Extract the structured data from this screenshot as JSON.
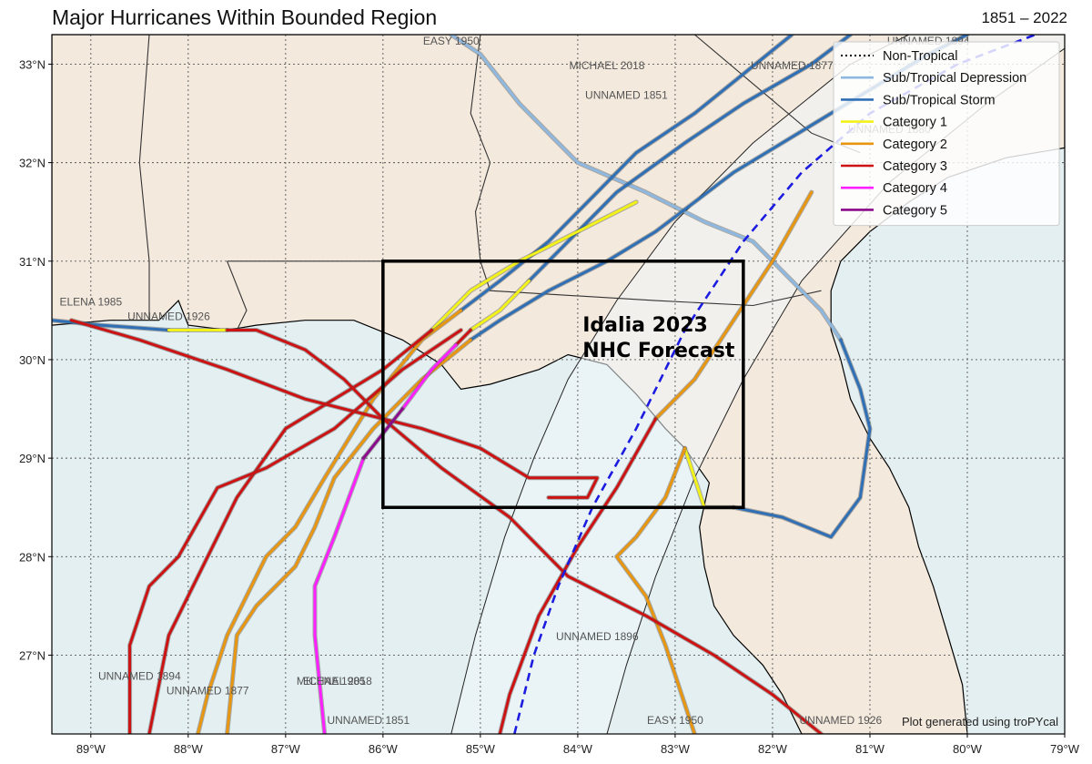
{
  "title": "Major Hurricanes Within Bounded Region",
  "years": "1851 – 2022",
  "credit": "Plot generated using troPYcal",
  "colors": {
    "ocean": "#e4eff1",
    "land": "#f3e9dd",
    "cone": "#eff5f8",
    "forecast": "#1c1ce0",
    "box": "#000000"
  },
  "chart_data": {
    "type": "map",
    "xlim": [
      -89.4,
      -79.0
    ],
    "ylim": [
      26.2,
      33.3
    ],
    "lon_ticks": [
      {
        "v": -89,
        "label": "89°W"
      },
      {
        "v": -88,
        "label": "88°W"
      },
      {
        "v": -87,
        "label": "87°W"
      },
      {
        "v": -86,
        "label": "86°W"
      },
      {
        "v": -85,
        "label": "85°W"
      },
      {
        "v": -84,
        "label": "84°W"
      },
      {
        "v": -83,
        "label": "83°W"
      },
      {
        "v": -82,
        "label": "82°W"
      },
      {
        "v": -81,
        "label": "81°W"
      },
      {
        "v": -80,
        "label": "80°W"
      },
      {
        "v": -79,
        "label": "79°W"
      }
    ],
    "lat_ticks": [
      {
        "v": 27,
        "label": "27°N"
      },
      {
        "v": 28,
        "label": "28°N"
      },
      {
        "v": 29,
        "label": "29°N"
      },
      {
        "v": 30,
        "label": "30°N"
      },
      {
        "v": 31,
        "label": "31°N"
      },
      {
        "v": 32,
        "label": "32°N"
      },
      {
        "v": 33,
        "label": "33°N"
      }
    ],
    "grid": true,
    "legend_position": "top-right",
    "legend": [
      {
        "label": "Non-Tropical",
        "color": "#000000",
        "style": "dotted"
      },
      {
        "label": "Sub/Tropical Depression",
        "color": "#8fb8e0",
        "style": "solid"
      },
      {
        "label": "Sub/Tropical Storm",
        "color": "#2f6fb5",
        "style": "solid"
      },
      {
        "label": "Category 1",
        "color": "#f2f21a",
        "style": "solid"
      },
      {
        "label": "Category 2",
        "color": "#e8960f",
        "style": "solid"
      },
      {
        "label": "Category 3",
        "color": "#cc1212",
        "style": "solid"
      },
      {
        "label": "Category 4",
        "color": "#ff1fff",
        "style": "solid"
      },
      {
        "label": "Category 5",
        "color": "#8b0a8b",
        "style": "solid"
      }
    ],
    "bounded_region": {
      "lon": [
        -86.0,
        -82.3
      ],
      "lat": [
        28.5,
        31.0
      ]
    },
    "annotation": {
      "line1": "Idalia 2023",
      "line2": "NHC Forecast",
      "lon": -83.95,
      "lat": 30.1
    },
    "forecast_track": [
      [
        -84.65,
        26.2
      ],
      [
        -84.45,
        27.0
      ],
      [
        -84.2,
        27.7
      ],
      [
        -83.85,
        28.5
      ],
      [
        -83.4,
        29.3
      ],
      [
        -82.9,
        30.3
      ],
      [
        -82.3,
        31.2
      ],
      [
        -81.7,
        31.9
      ],
      [
        -81.0,
        32.5
      ],
      [
        -80.1,
        33.0
      ],
      [
        -79.3,
        33.3
      ]
    ],
    "storms": [
      {
        "label": "EASY 1950",
        "label_pos": [
          -85.3,
          33.2
        ],
        "segments": [
          {
            "cat": "SD",
            "pts": [
              [
                -85.3,
                33.3
              ],
              [
                -85.0,
                33.1
              ],
              [
                -84.6,
                32.6
              ],
              [
                -84.3,
                32.3
              ],
              [
                -84.0,
                32.0
              ],
              [
                -83.3,
                31.7
              ],
              [
                -82.7,
                31.4
              ],
              [
                -82.2,
                31.2
              ],
              [
                -81.8,
                30.8
              ],
              [
                -81.5,
                30.5
              ],
              [
                -81.3,
                30.2
              ]
            ]
          },
          {
            "cat": "TS",
            "pts": [
              [
                -81.3,
                30.2
              ],
              [
                -81.1,
                29.7
              ],
              [
                -81.0,
                29.3
              ],
              [
                -81.1,
                28.6
              ],
              [
                -81.4,
                28.2
              ],
              [
                -81.9,
                28.4
              ],
              [
                -82.4,
                28.5
              ]
            ]
          },
          {
            "cat": "C1",
            "pts": [
              [
                -82.4,
                28.5
              ],
              [
                -82.7,
                28.5
              ],
              [
                -82.8,
                28.8
              ],
              [
                -82.9,
                29.1
              ]
            ]
          },
          {
            "cat": "C2",
            "pts": [
              [
                -82.9,
                29.1
              ],
              [
                -83.1,
                28.6
              ],
              [
                -83.4,
                28.2
              ],
              [
                -83.6,
                28.0
              ],
              [
                -83.3,
                27.6
              ],
              [
                -83.1,
                27.1
              ],
              [
                -82.8,
                26.2
              ]
            ]
          }
        ]
      },
      {
        "label": "EASY 1950",
        "label_pos": [
          -83.0,
          26.3
        ],
        "segments": []
      },
      {
        "label": "MICHAEL 2018",
        "label_pos": [
          -83.7,
          32.95
        ],
        "segments": [
          {
            "cat": "TS",
            "pts": [
              [
                -81.2,
                33.3
              ],
              [
                -81.6,
                33.0
              ],
              [
                -82.3,
                32.6
              ],
              [
                -82.9,
                32.2
              ],
              [
                -83.6,
                31.7
              ],
              [
                -84.1,
                31.2
              ],
              [
                -84.5,
                30.8
              ]
            ]
          },
          {
            "cat": "C1",
            "pts": [
              [
                -84.5,
                30.8
              ],
              [
                -84.8,
                30.5
              ],
              [
                -85.1,
                30.3
              ]
            ]
          },
          {
            "cat": "C3",
            "pts": [
              [
                -85.1,
                30.3
              ],
              [
                -85.25,
                30.15
              ]
            ]
          },
          {
            "cat": "C4",
            "pts": [
              [
                -85.25,
                30.15
              ],
              [
                -85.5,
                29.9
              ],
              [
                -85.8,
                29.5
              ]
            ]
          },
          {
            "cat": "C5",
            "pts": [
              [
                -85.8,
                29.5
              ],
              [
                -86.2,
                29.0
              ]
            ]
          },
          {
            "cat": "C4",
            "pts": [
              [
                -86.2,
                29.0
              ],
              [
                -86.5,
                28.2
              ],
              [
                -86.7,
                27.7
              ],
              [
                -86.7,
                27.2
              ],
              [
                -86.6,
                26.2
              ]
            ]
          }
        ]
      },
      {
        "label": "MICHAEL 2018",
        "label_pos": [
          -86.5,
          26.7
        ],
        "segments": []
      },
      {
        "label": "UNNAMED 1877",
        "label_pos": [
          -81.8,
          32.95
        ],
        "segments": [
          {
            "cat": "TS",
            "pts": [
              [
                -81.8,
                33.3
              ],
              [
                -82.3,
                32.9
              ],
              [
                -82.8,
                32.5
              ],
              [
                -83.4,
                32.1
              ],
              [
                -83.9,
                31.6
              ],
              [
                -84.3,
                31.2
              ],
              [
                -84.8,
                30.8
              ],
              [
                -85.2,
                30.5
              ]
            ]
          },
          {
            "cat": "C2",
            "pts": [
              [
                -85.2,
                30.5
              ],
              [
                -85.6,
                30.2
              ],
              [
                -86.1,
                29.6
              ],
              [
                -86.6,
                28.8
              ],
              [
                -86.9,
                28.3
              ],
              [
                -87.2,
                28.0
              ],
              [
                -87.3,
                27.8
              ],
              [
                -87.6,
                27.2
              ],
              [
                -87.8,
                26.6
              ],
              [
                -87.9,
                26.2
              ]
            ]
          }
        ]
      },
      {
        "label": "UNNAMED 1877",
        "label_pos": [
          -87.8,
          26.6
        ],
        "segments": []
      },
      {
        "label": "UNNAMED 1851",
        "label_pos": [
          -83.5,
          32.65
        ],
        "segments": [
          {
            "cat": "C1",
            "pts": [
              [
                -83.4,
                31.6
              ],
              [
                -84.0,
                31.3
              ],
              [
                -84.6,
                31.0
              ],
              [
                -85.1,
                30.7
              ],
              [
                -85.5,
                30.3
              ]
            ]
          },
          {
            "cat": "C3",
            "pts": [
              [
                -85.5,
                30.3
              ],
              [
                -86.0,
                29.9
              ],
              [
                -86.5,
                29.6
              ],
              [
                -87.0,
                29.3
              ],
              [
                -87.5,
                28.6
              ],
              [
                -87.9,
                27.8
              ],
              [
                -88.2,
                27.2
              ],
              [
                -88.4,
                26.2
              ]
            ]
          }
        ]
      },
      {
        "label": "UNNAMED 1851",
        "label_pos": [
          -86.15,
          26.3
        ],
        "segments": []
      },
      {
        "label": "UNNAMED 1894",
        "label_pos": [
          -80.4,
          33.2
        ],
        "segments": [
          {
            "cat": "TS",
            "pts": [
              [
                -80.0,
                33.3
              ],
              [
                -80.4,
                33.1
              ],
              [
                -80.9,
                32.8
              ],
              [
                -81.4,
                32.5
              ],
              [
                -81.9,
                32.2
              ],
              [
                -82.4,
                31.9
              ],
              [
                -82.8,
                31.6
              ],
              [
                -83.2,
                31.3
              ],
              [
                -83.7,
                31.0
              ],
              [
                -84.3,
                30.7
              ],
              [
                -84.8,
                30.4
              ],
              [
                -85.1,
                30.2
              ]
            ]
          },
          {
            "cat": "C2",
            "pts": [
              [
                -85.1,
                30.2
              ],
              [
                -85.6,
                29.8
              ],
              [
                -86.1,
                29.3
              ],
              [
                -86.5,
                28.8
              ],
              [
                -86.7,
                28.3
              ],
              [
                -86.9,
                27.9
              ],
              [
                -87.3,
                27.5
              ],
              [
                -87.5,
                27.2
              ],
              [
                -87.6,
                26.2
              ]
            ]
          }
        ]
      },
      {
        "label": "UNNAMED 1894",
        "label_pos": [
          -88.5,
          26.75
        ],
        "segments": []
      },
      {
        "label": "UNNAMED 1880",
        "label_pos": [
          -80.8,
          32.3
        ],
        "segments": [
          {
            "cat": "C2",
            "pts": [
              [
                -81.6,
                31.7
              ],
              [
                -82.0,
                31.0
              ],
              [
                -82.4,
                30.4
              ],
              [
                -82.8,
                29.8
              ],
              [
                -83.2,
                29.4
              ]
            ]
          },
          {
            "cat": "C3",
            "pts": [
              [
                -83.2,
                29.4
              ],
              [
                -83.6,
                28.7
              ],
              [
                -84.0,
                28.1
              ],
              [
                -84.4,
                27.4
              ],
              [
                -84.7,
                26.6
              ],
              [
                -84.8,
                26.2
              ]
            ]
          }
        ]
      },
      {
        "label": "ELENA 1985",
        "label_pos": [
          -89.0,
          30.55
        ],
        "segments": [
          {
            "cat": "C3",
            "pts": [
              [
                -89.2,
                30.4
              ],
              [
                -88.5,
                30.2
              ],
              [
                -87.6,
                29.9
              ],
              [
                -86.8,
                29.6
              ],
              [
                -86.0,
                29.4
              ],
              [
                -85.6,
                29.3
              ],
              [
                -85.0,
                29.1
              ],
              [
                -84.5,
                28.8
              ],
              [
                -83.8,
                28.8
              ],
              [
                -83.9,
                28.6
              ],
              [
                -84.3,
                28.6
              ]
            ]
          }
        ]
      },
      {
        "label": "ELENA 1985",
        "label_pos": [
          -86.5,
          26.7
        ],
        "segments": []
      },
      {
        "label": "UNNAMED 1926",
        "label_pos": [
          -88.2,
          30.4
        ],
        "segments": [
          {
            "cat": "TS",
            "pts": [
              [
                -89.4,
                30.4
              ],
              [
                -88.9,
                30.35
              ],
              [
                -88.2,
                30.3
              ]
            ]
          },
          {
            "cat": "C1",
            "pts": [
              [
                -88.2,
                30.3
              ],
              [
                -87.6,
                30.3
              ]
            ]
          },
          {
            "cat": "C3",
            "pts": [
              [
                -87.6,
                30.3
              ],
              [
                -87.3,
                30.3
              ],
              [
                -86.8,
                30.1
              ],
              [
                -86.4,
                29.8
              ],
              [
                -86.0,
                29.4
              ],
              [
                -85.4,
                28.9
              ],
              [
                -84.7,
                28.4
              ],
              [
                -84.1,
                27.8
              ],
              [
                -83.3,
                27.4
              ],
              [
                -82.6,
                27.0
              ],
              [
                -82.0,
                26.6
              ],
              [
                -81.5,
                26.2
              ]
            ]
          }
        ]
      },
      {
        "label": "UNNAMED 1926",
        "label_pos": [
          -81.3,
          26.3
        ],
        "segments": []
      },
      {
        "label": "UNNAMED 1896",
        "label_pos": [
          -83.8,
          27.15
        ],
        "segments": [
          {
            "cat": "C3",
            "pts": [
              [
                -85.2,
                30.3
              ],
              [
                -85.8,
                29.9
              ],
              [
                -86.5,
                29.3
              ],
              [
                -87.2,
                28.9
              ],
              [
                -87.7,
                28.7
              ],
              [
                -88.1,
                28.0
              ],
              [
                -88.4,
                27.7
              ],
              [
                -88.6,
                27.1
              ],
              [
                -88.6,
                26.2
              ]
            ]
          }
        ]
      }
    ]
  }
}
